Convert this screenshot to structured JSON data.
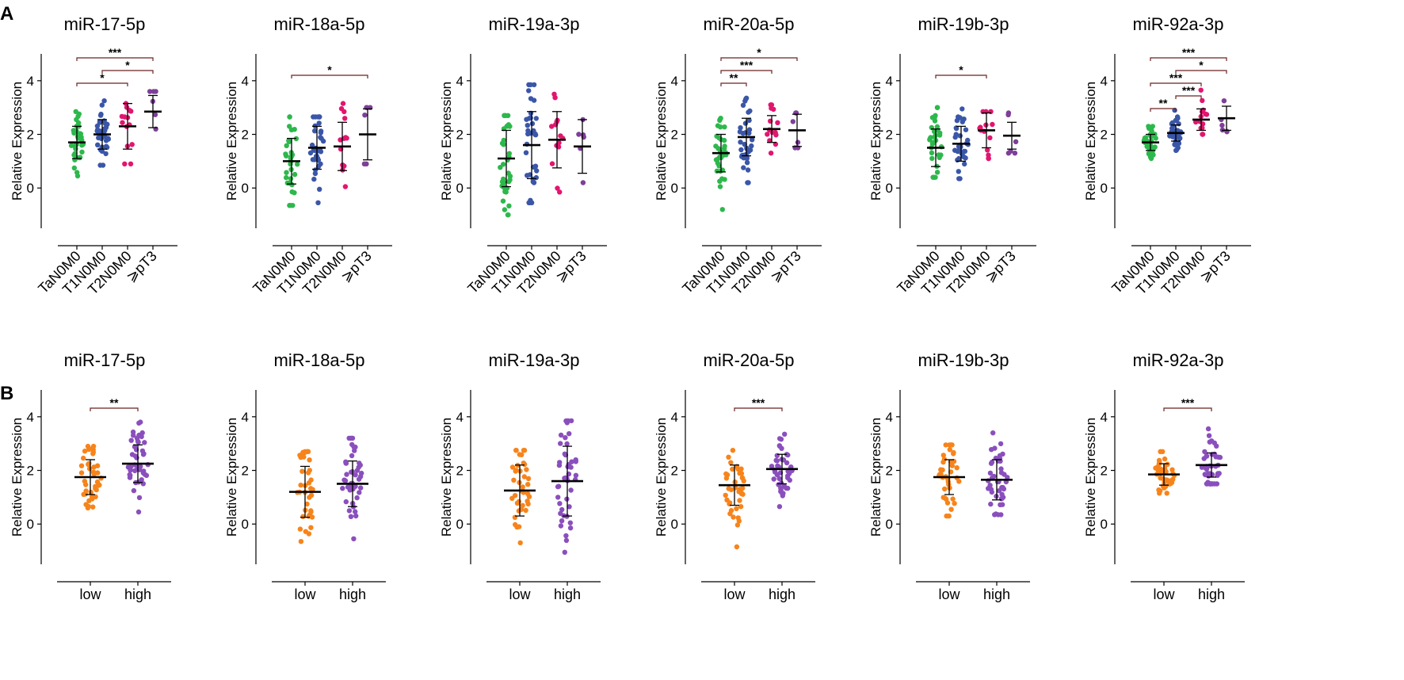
{
  "panel_labels": [
    "A",
    "B"
  ],
  "colors": {
    "TaN0M0": "#2db84c",
    "T1N0M0": "#3a56a8",
    "T2N0M0": "#e2156f",
    "pT3": "#7d3f98",
    "low": "#f7841b",
    "high": "#8a4fbd",
    "bracket": "#6b2222"
  },
  "chart_data": [
    {
      "type": "scatter",
      "title": "miR-17-5p",
      "ylabel": "Relative Expression",
      "ylim": [
        -1.5,
        5
      ],
      "yticks": [
        0,
        2,
        4
      ],
      "categories": [
        "TaN0M0",
        "T1N0M0",
        "T2N0M0",
        "⩾pT3"
      ],
      "color_keys": [
        "TaN0M0",
        "T1N0M0",
        "T2N0M0",
        "pT3"
      ],
      "n": [
        34,
        36,
        14,
        6
      ],
      "mean": [
        1.7,
        2.0,
        2.3,
        2.85
      ],
      "sd": [
        0.6,
        0.55,
        0.85,
        0.6
      ],
      "spread": [
        [
          0.45,
          2.85
        ],
        [
          0.85,
          3.25
        ],
        [
          0.9,
          3.15
        ],
        [
          2.2,
          3.6
        ]
      ],
      "brackets": [
        {
          "from": 0,
          "to": 3,
          "label": "***"
        },
        {
          "from": 1,
          "to": 3,
          "label": "*"
        },
        {
          "from": 0,
          "to": 2,
          "label": "*"
        }
      ]
    },
    {
      "type": "scatter",
      "title": "miR-18a-5p",
      "ylabel": "Relative Expression",
      "ylim": [
        -1.5,
        5
      ],
      "yticks": [
        0,
        2,
        4
      ],
      "categories": [
        "TaN0M0",
        "T1N0M0",
        "T2N0M0",
        "⩾pT3"
      ],
      "color_keys": [
        "TaN0M0",
        "T1N0M0",
        "T2N0M0",
        "pT3"
      ],
      "n": [
        34,
        36,
        14,
        6
      ],
      "mean": [
        1.0,
        1.5,
        1.55,
        2.0
      ],
      "sd": [
        0.85,
        0.8,
        0.9,
        0.95
      ],
      "spread": [
        [
          -0.65,
          2.65
        ],
        [
          -0.55,
          2.65
        ],
        [
          0.05,
          3.15
        ],
        [
          0.9,
          3.0
        ]
      ],
      "brackets": [
        {
          "from": 0,
          "to": 3,
          "label": "*"
        }
      ]
    },
    {
      "type": "scatter",
      "title": "miR-19a-3p",
      "ylabel": "Relative Expression",
      "ylim": [
        -1.5,
        5
      ],
      "yticks": [
        0,
        2,
        4
      ],
      "categories": [
        "TaN0M0",
        "T1N0M0",
        "T2N0M0",
        "⩾pT3"
      ],
      "color_keys": [
        "TaN0M0",
        "T1N0M0",
        "T2N0M0",
        "pT3"
      ],
      "n": [
        34,
        36,
        14,
        6
      ],
      "mean": [
        1.1,
        1.6,
        1.8,
        1.55
      ],
      "sd": [
        1.05,
        1.25,
        1.05,
        1.0
      ],
      "spread": [
        [
          -1.0,
          2.7
        ],
        [
          -0.55,
          3.85
        ],
        [
          -0.15,
          3.5
        ],
        [
          0.2,
          2.55
        ]
      ],
      "brackets": []
    },
    {
      "type": "scatter",
      "title": "miR-20a-5p",
      "ylabel": "Relative Expression",
      "ylim": [
        -1.5,
        5
      ],
      "yticks": [
        0,
        2,
        4
      ],
      "categories": [
        "TaN0M0",
        "T1N0M0",
        "T2N0M0",
        "⩾pT3"
      ],
      "color_keys": [
        "TaN0M0",
        "T1N0M0",
        "T2N0M0",
        "pT3"
      ],
      "n": [
        34,
        36,
        14,
        6
      ],
      "mean": [
        1.3,
        1.9,
        2.2,
        2.15
      ],
      "sd": [
        0.7,
        0.7,
        0.5,
        0.6
      ],
      "spread": [
        [
          -0.8,
          2.6
        ],
        [
          0.2,
          3.35
        ],
        [
          1.3,
          3.1
        ],
        [
          1.5,
          2.8
        ]
      ],
      "brackets": [
        {
          "from": 0,
          "to": 3,
          "label": "*"
        },
        {
          "from": 0,
          "to": 2,
          "label": "***"
        },
        {
          "from": 0,
          "to": 1,
          "label": "**"
        }
      ]
    },
    {
      "type": "scatter",
      "title": "miR-19b-3p",
      "ylabel": "Relative Expression",
      "ylim": [
        -1.5,
        5
      ],
      "yticks": [
        0,
        2,
        4
      ],
      "categories": [
        "TaN0M0",
        "T1N0M0",
        "T2N0M0",
        "⩾pT3"
      ],
      "color_keys": [
        "TaN0M0",
        "T1N0M0",
        "T2N0M0",
        "pT3"
      ],
      "n": [
        34,
        36,
        14,
        6
      ],
      "mean": [
        1.5,
        1.65,
        2.15,
        1.95
      ],
      "sd": [
        0.7,
        0.65,
        0.65,
        0.5
      ],
      "spread": [
        [
          0.4,
          3.0
        ],
        [
          0.35,
          2.95
        ],
        [
          1.1,
          2.85
        ],
        [
          1.3,
          2.8
        ]
      ],
      "brackets": [
        {
          "from": 0,
          "to": 2,
          "label": "*"
        }
      ]
    },
    {
      "type": "scatter",
      "title": "miR-92a-3p",
      "ylabel": "Relative Expression",
      "ylim": [
        -1.5,
        5
      ],
      "yticks": [
        0,
        2,
        4
      ],
      "categories": [
        "TaN0M0",
        "T1N0M0",
        "T2N0M0",
        "⩾pT3"
      ],
      "color_keys": [
        "TaN0M0",
        "T1N0M0",
        "T2N0M0",
        "pT3"
      ],
      "n": [
        34,
        36,
        14,
        6
      ],
      "mean": [
        1.7,
        2.05,
        2.55,
        2.6
      ],
      "sd": [
        0.3,
        0.3,
        0.4,
        0.45
      ],
      "spread": [
        [
          1.1,
          2.3
        ],
        [
          1.4,
          2.9
        ],
        [
          2.0,
          3.65
        ],
        [
          2.1,
          3.25
        ]
      ],
      "brackets": [
        {
          "from": 0,
          "to": 3,
          "label": "***"
        },
        {
          "from": 1,
          "to": 3,
          "label": "*"
        },
        {
          "from": 0,
          "to": 2,
          "label": "***"
        },
        {
          "from": 1,
          "to": 2,
          "label": "***"
        },
        {
          "from": 0,
          "to": 1,
          "label": "**"
        }
      ]
    },
    {
      "type": "scatter",
      "title": "miR-17-5p",
      "ylabel": "Relative Expression",
      "ylim": [
        -1.5,
        5
      ],
      "yticks": [
        0,
        2,
        4
      ],
      "categories": [
        "low",
        "high"
      ],
      "color_keys": [
        "low",
        "high"
      ],
      "n": [
        40,
        44
      ],
      "mean": [
        1.75,
        2.25
      ],
      "sd": [
        0.65,
        0.7
      ],
      "spread": [
        [
          0.6,
          2.9
        ],
        [
          0.45,
          3.8
        ]
      ],
      "brackets": [
        {
          "from": 0,
          "to": 1,
          "label": "**"
        }
      ]
    },
    {
      "type": "scatter",
      "title": "miR-18a-5p",
      "ylabel": "Relative Expression",
      "ylim": [
        -1.5,
        5
      ],
      "yticks": [
        0,
        2,
        4
      ],
      "categories": [
        "low",
        "high"
      ],
      "color_keys": [
        "low",
        "high"
      ],
      "n": [
        40,
        44
      ],
      "mean": [
        1.2,
        1.5
      ],
      "sd": [
        0.95,
        0.85
      ],
      "spread": [
        [
          -0.65,
          2.7
        ],
        [
          -0.55,
          3.2
        ]
      ],
      "brackets": []
    },
    {
      "type": "scatter",
      "title": "miR-19a-3p",
      "ylabel": "Relative Expression",
      "ylim": [
        -1.5,
        5
      ],
      "yticks": [
        0,
        2,
        4
      ],
      "categories": [
        "low",
        "high"
      ],
      "color_keys": [
        "low",
        "high"
      ],
      "n": [
        40,
        44
      ],
      "mean": [
        1.25,
        1.6
      ],
      "sd": [
        0.95,
        1.3
      ],
      "spread": [
        [
          -0.7,
          2.75
        ],
        [
          -1.05,
          3.85
        ]
      ],
      "brackets": []
    },
    {
      "type": "scatter",
      "title": "miR-20a-5p",
      "ylabel": "Relative Expression",
      "ylim": [
        -1.5,
        5
      ],
      "yticks": [
        0,
        2,
        4
      ],
      "categories": [
        "low",
        "high"
      ],
      "color_keys": [
        "low",
        "high"
      ],
      "n": [
        40,
        44
      ],
      "mean": [
        1.45,
        2.05
      ],
      "sd": [
        0.75,
        0.55
      ],
      "spread": [
        [
          -0.85,
          2.75
        ],
        [
          0.65,
          3.35
        ]
      ],
      "brackets": [
        {
          "from": 0,
          "to": 1,
          "label": "***"
        }
      ]
    },
    {
      "type": "scatter",
      "title": "miR-19b-3p",
      "ylabel": "Relative Expression",
      "ylim": [
        -1.5,
        5
      ],
      "yticks": [
        0,
        2,
        4
      ],
      "categories": [
        "low",
        "high"
      ],
      "color_keys": [
        "low",
        "high"
      ],
      "n": [
        40,
        44
      ],
      "mean": [
        1.75,
        1.65
      ],
      "sd": [
        0.65,
        0.75
      ],
      "spread": [
        [
          0.3,
          2.95
        ],
        [
          0.35,
          3.4
        ]
      ],
      "brackets": []
    },
    {
      "type": "scatter",
      "title": "miR-92a-3p",
      "ylabel": "Relative Expression",
      "ylim": [
        -1.5,
        5
      ],
      "yticks": [
        0,
        2,
        4
      ],
      "categories": [
        "low",
        "high"
      ],
      "color_keys": [
        "low",
        "high"
      ],
      "n": [
        40,
        44
      ],
      "mean": [
        1.85,
        2.2
      ],
      "sd": [
        0.4,
        0.45
      ],
      "spread": [
        [
          1.15,
          2.7
        ],
        [
          1.5,
          3.55
        ]
      ],
      "brackets": [
        {
          "from": 0,
          "to": 1,
          "label": "***"
        }
      ]
    }
  ]
}
